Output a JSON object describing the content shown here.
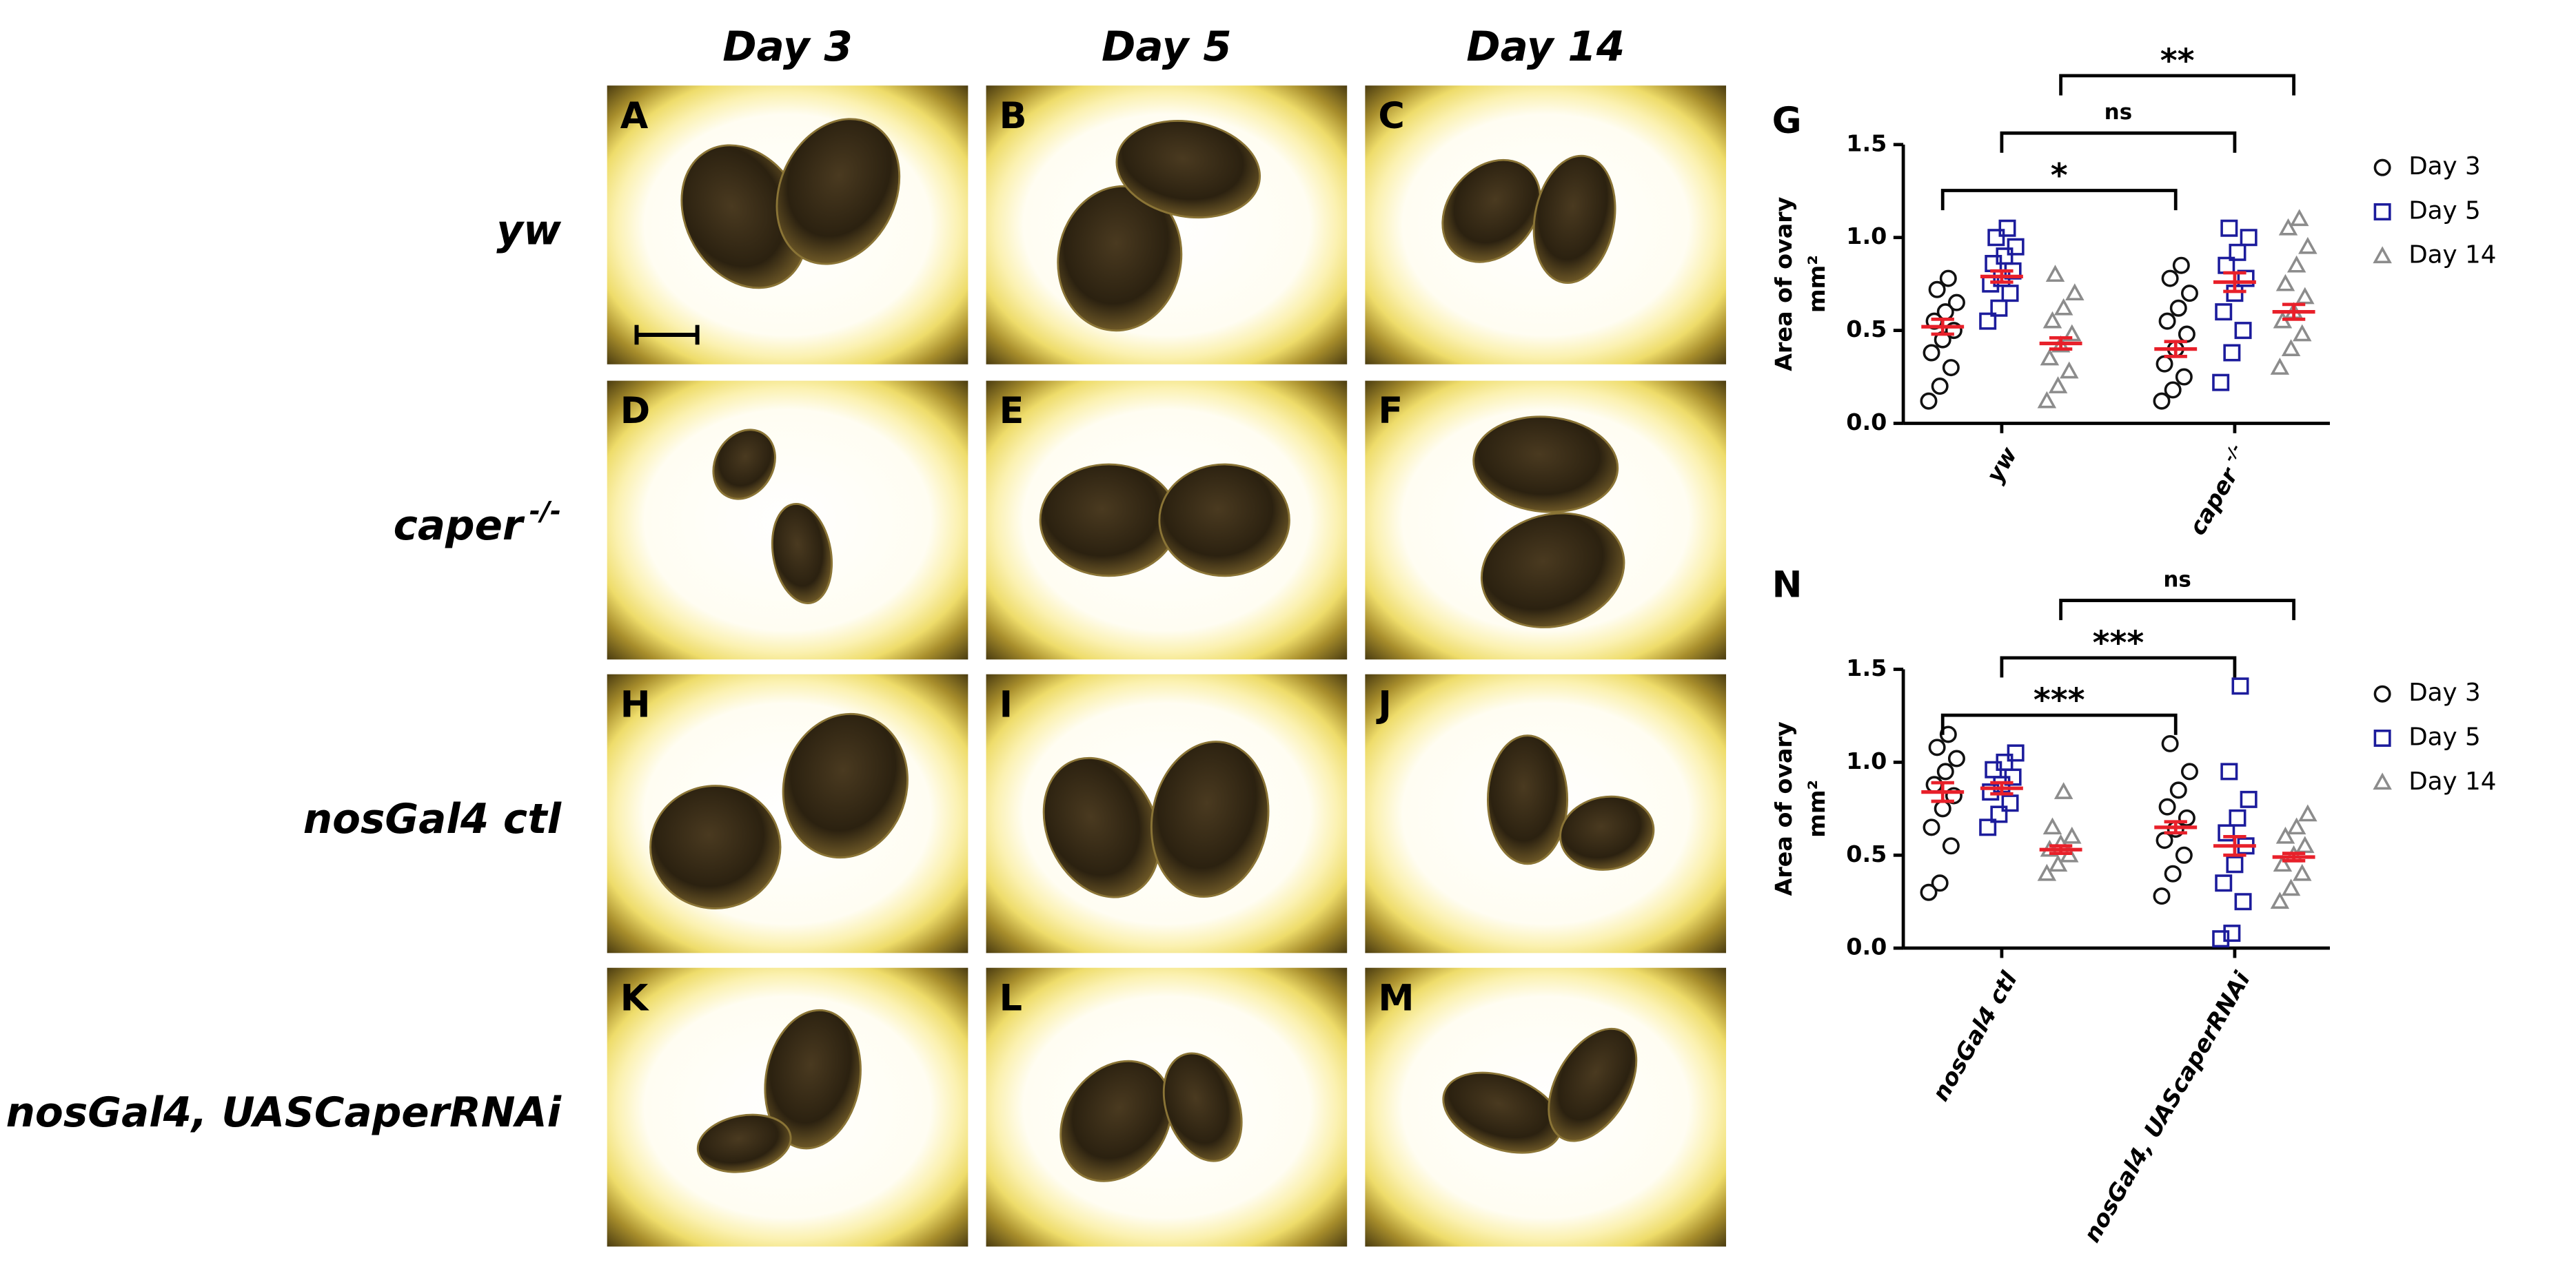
{
  "column_headers": [
    "Day 3",
    "Day 5",
    "Day 14"
  ],
  "row_labels": [
    {
      "text": "yw"
    },
    {
      "text": "caper",
      "sup": "-/-"
    },
    {
      "text": "nosGal4 ctl"
    },
    {
      "text": "nosGal4, UASCaperRNAi"
    }
  ],
  "panel_letters": [
    [
      "A",
      "B",
      "C"
    ],
    [
      "D",
      "E",
      "F"
    ],
    [
      "H",
      "I",
      "J"
    ],
    [
      "K",
      "L",
      "M"
    ]
  ],
  "chart_data": [
    {
      "type": "dot",
      "panel_label": "G",
      "y_label": [
        "Area of ovary",
        "mm²"
      ],
      "categories": [
        {
          "text": "yw"
        },
        {
          "text": "caper",
          "sup": "-/-"
        }
      ],
      "ylim": [
        0,
        1.5
      ],
      "yticks": [
        {
          "value": 0,
          "label": "0.0"
        },
        {
          "value": 0.5,
          "label": "0.5"
        },
        {
          "value": 1,
          "label": "1.0"
        },
        {
          "value": 1.5,
          "label": "1.5"
        }
      ],
      "error_color": "#e8202a",
      "series": [
        {
          "name": "Day 3",
          "color": "#111111",
          "marker": "circle",
          "points": [
            [
              0.12,
              0.2,
              0.3,
              0.38,
              0.45,
              0.5,
              0.55,
              0.6,
              0.65,
              0.72,
              0.78
            ],
            [
              0.12,
              0.18,
              0.25,
              0.32,
              0.4,
              0.48,
              0.55,
              0.62,
              0.7,
              0.78,
              0.85
            ]
          ],
          "mean": [
            0.52,
            0.4
          ],
          "sem": [
            0.04,
            0.04
          ]
        },
        {
          "name": "Day 5",
          "color": "#1c1c9c",
          "marker": "square",
          "points": [
            [
              0.55,
              0.62,
              0.7,
              0.75,
              0.78,
              0.82,
              0.86,
              0.9,
              0.95,
              1.0,
              1.05
            ],
            [
              0.22,
              0.38,
              0.5,
              0.6,
              0.7,
              0.78,
              0.85,
              0.92,
              1.0,
              1.05
            ]
          ],
          "mean": [
            0.79,
            0.76
          ],
          "sem": [
            0.03,
            0.05
          ]
        },
        {
          "name": "Day 14",
          "color": "#8c8c8c",
          "marker": "triangle",
          "points": [
            [
              0.12,
              0.2,
              0.28,
              0.35,
              0.42,
              0.48,
              0.55,
              0.62,
              0.7,
              0.8
            ],
            [
              0.3,
              0.4,
              0.48,
              0.55,
              0.6,
              0.68,
              0.75,
              0.85,
              0.95,
              1.05,
              1.1
            ]
          ],
          "mean": [
            0.43,
            0.6
          ],
          "sem": [
            0.03,
            0.04
          ]
        }
      ],
      "significance": [
        "*",
        "ns",
        "**"
      ]
    },
    {
      "type": "dot",
      "panel_label": "N",
      "y_label": [
        "Area of ovary",
        "mm²"
      ],
      "categories": [
        {
          "text": "nosGal4 ctl"
        },
        {
          "text": "nosGal4, UAScaperRNAi"
        }
      ],
      "ylim": [
        0,
        1.5
      ],
      "yticks": [
        {
          "value": 0,
          "label": "0.0"
        },
        {
          "value": 0.5,
          "label": "0.5"
        },
        {
          "value": 1,
          "label": "1.0"
        },
        {
          "value": 1.5,
          "label": "1.5"
        }
      ],
      "error_color": "#e8202a",
      "series": [
        {
          "name": "Day 3",
          "color": "#111111",
          "marker": "circle",
          "points": [
            [
              0.3,
              0.35,
              0.55,
              0.65,
              0.75,
              0.82,
              0.88,
              0.95,
              1.02,
              1.08,
              1.15
            ],
            [
              0.28,
              0.4,
              0.5,
              0.58,
              0.64,
              0.7,
              0.76,
              0.85,
              0.95,
              1.1
            ]
          ],
          "mean": [
            0.84,
            0.65
          ],
          "sem": [
            0.05,
            0.03
          ]
        },
        {
          "name": "Day 5",
          "color": "#1c1c9c",
          "marker": "square",
          "points": [
            [
              0.65,
              0.72,
              0.78,
              0.84,
              0.88,
              0.92,
              0.96,
              1.0,
              1.05
            ],
            [
              0.05,
              0.08,
              0.25,
              0.35,
              0.45,
              0.55,
              0.62,
              0.7,
              0.8,
              0.95,
              1.41
            ]
          ],
          "mean": [
            0.86,
            0.55
          ],
          "sem": [
            0.03,
            0.05
          ]
        },
        {
          "name": "Day 14",
          "color": "#8c8c8c",
          "marker": "triangle",
          "points": [
            [
              0.4,
              0.45,
              0.5,
              0.53,
              0.56,
              0.6,
              0.65,
              0.84
            ],
            [
              0.25,
              0.32,
              0.4,
              0.45,
              0.5,
              0.55,
              0.6,
              0.65,
              0.72
            ]
          ],
          "mean": [
            0.53,
            0.49
          ],
          "sem": [
            0.02,
            0.02
          ]
        }
      ],
      "significance": [
        "***",
        "***",
        "ns"
      ]
    }
  ]
}
